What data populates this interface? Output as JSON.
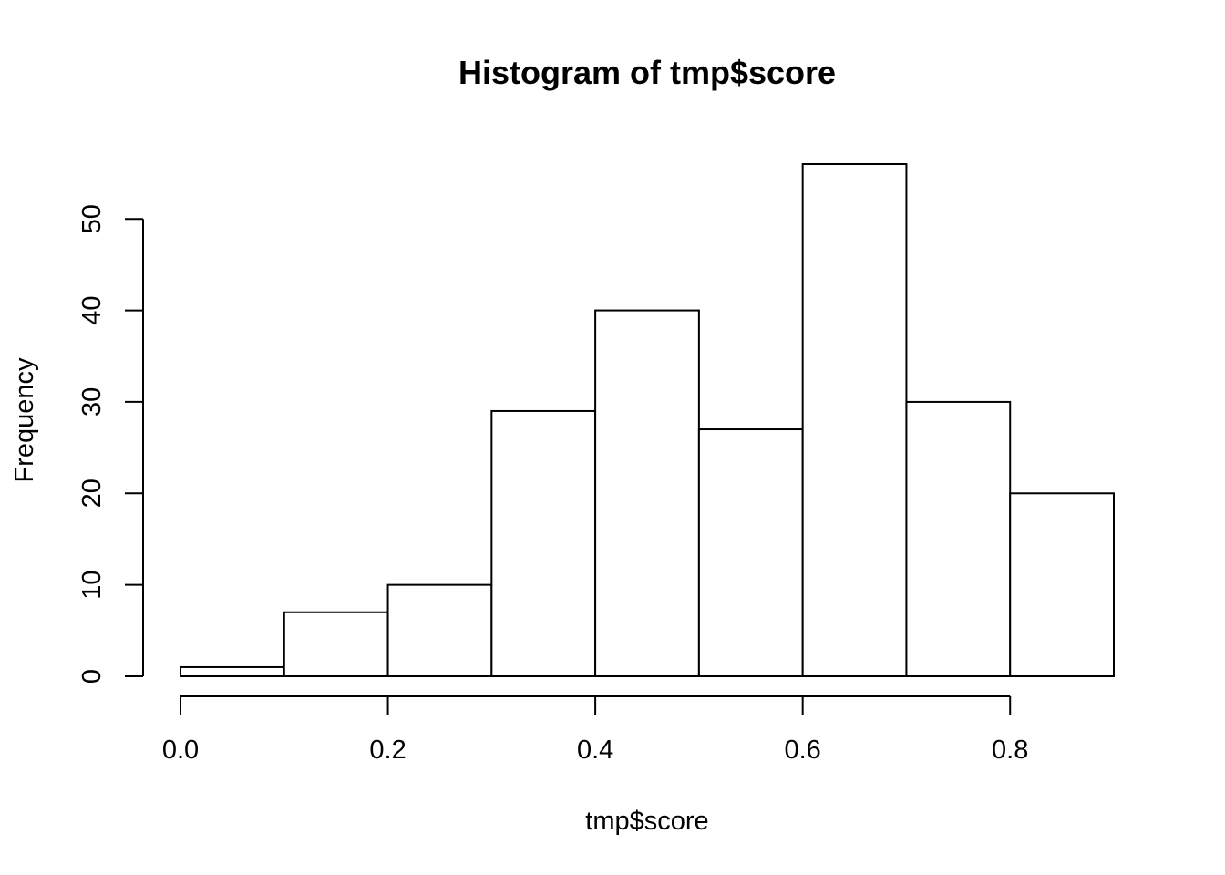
{
  "chart_data": {
    "type": "bar",
    "title": "Histogram of tmp$score",
    "xlabel": "tmp$score",
    "ylabel": "Frequency",
    "bins": [
      {
        "x0": 0.0,
        "x1": 0.1,
        "value": 1
      },
      {
        "x0": 0.1,
        "x1": 0.2,
        "value": 7
      },
      {
        "x0": 0.2,
        "x1": 0.3,
        "value": 10
      },
      {
        "x0": 0.3,
        "x1": 0.4,
        "value": 29
      },
      {
        "x0": 0.4,
        "x1": 0.5,
        "value": 40
      },
      {
        "x0": 0.5,
        "x1": 0.6,
        "value": 27
      },
      {
        "x0": 0.6,
        "x1": 0.7,
        "value": 56
      },
      {
        "x0": 0.7,
        "x1": 0.8,
        "value": 30
      },
      {
        "x0": 0.8,
        "x1": 0.9,
        "value": 20
      }
    ],
    "xticks": [
      "0.0",
      "0.2",
      "0.4",
      "0.6",
      "0.8"
    ],
    "xtick_values": [
      0.0,
      0.2,
      0.4,
      0.6,
      0.8
    ],
    "yticks": [
      "0",
      "10",
      "20",
      "30",
      "40",
      "50"
    ],
    "ytick_values": [
      0,
      10,
      20,
      30,
      40,
      50
    ],
    "xlim": [
      0.0,
      0.9
    ],
    "ylim": [
      0,
      56
    ],
    "grid": false,
    "colors": {
      "bar_fill": "#ffffff",
      "bar_stroke": "#000000"
    }
  }
}
